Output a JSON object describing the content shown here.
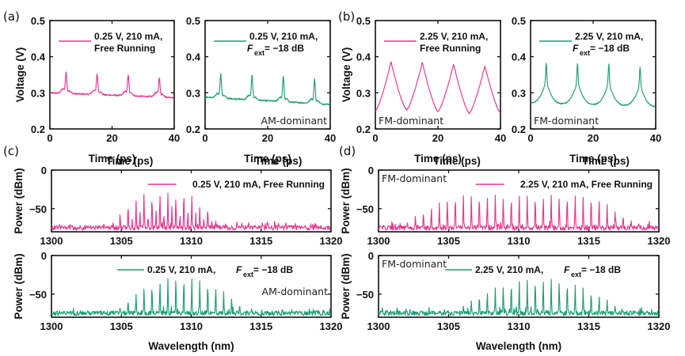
{
  "figure": {
    "colors": {
      "free_running": "#e8378f",
      "feedback": "#1f9e78",
      "axis": "#111111"
    },
    "panel_labels": [
      "(a)",
      "(b)",
      "(c)",
      "(d)"
    ]
  },
  "chart_data": [
    {
      "id": "a-free",
      "panel": "(a)",
      "type": "line",
      "xlabel": "Time (ps)",
      "ylabel": "Voltage (V)",
      "xlim": [
        0,
        40
      ],
      "ylim": [
        0.2,
        0.5
      ],
      "xticks": [
        0,
        20,
        40
      ],
      "yticks": [
        0.2,
        0.3,
        0.4,
        0.5
      ],
      "legend": {
        "line1": "0.25 V, 210 mA,",
        "line2": "Free Running",
        "position": "top-right"
      },
      "annotation": "",
      "color_key": "free_running",
      "waveform": {
        "kind": "sharp-peaks",
        "baseline_start": 0.3,
        "baseline_end": 0.287,
        "peak_times": [
          5.2,
          15.2,
          25.2,
          35.2
        ],
        "peak_values": [
          0.365,
          0.36,
          0.357,
          0.35
        ]
      }
    },
    {
      "id": "a-fb",
      "panel": "(a)",
      "type": "line",
      "xlabel": "Time (ps)",
      "ylabel": "",
      "xlim": [
        0,
        40
      ],
      "ylim": [
        0.2,
        0.5
      ],
      "xticks": [
        0,
        20,
        40
      ],
      "yticks": [
        0.2,
        0.3,
        0.4,
        0.5
      ],
      "legend": {
        "line1": "0.25 V, 210 mA,",
        "line2_prefix": "F",
        "line2_sub": "ext",
        "line2_suffix": " = −18 dB",
        "position": "top-right"
      },
      "annotation": "AM-dominant",
      "color_key": "feedback",
      "waveform": {
        "kind": "sharp-peaks",
        "baseline_start": 0.288,
        "baseline_end": 0.268,
        "peak_times": [
          5.0,
          15.0,
          25.0,
          35.0
        ],
        "peak_values": [
          0.362,
          0.357,
          0.357,
          0.348
        ]
      }
    },
    {
      "id": "b-free",
      "panel": "(b)",
      "type": "line",
      "xlabel": "Time (ps)",
      "ylabel": "Voltage (V)",
      "xlim": [
        0,
        40
      ],
      "ylim": [
        0.2,
        0.5
      ],
      "xticks": [
        0,
        20,
        40
      ],
      "yticks": [
        0.2,
        0.3,
        0.4,
        0.5
      ],
      "legend": {
        "line1": "2.25 V, 210 mA,",
        "line2": "Free Running",
        "position": "top-right"
      },
      "annotation": "FM-dominant",
      "color_key": "free_running",
      "waveform": {
        "kind": "triangular",
        "minima": [
          [
            0,
            0.25
          ],
          [
            10,
            0.252
          ],
          [
            20,
            0.248
          ],
          [
            30,
            0.243
          ],
          [
            40,
            0.244
          ]
        ],
        "peak_times": [
          5.0,
          15.0,
          25.0,
          35.0
        ],
        "peak_values": [
          0.386,
          0.385,
          0.38,
          0.375
        ]
      }
    },
    {
      "id": "b-fb",
      "panel": "(b)",
      "type": "line",
      "xlabel": "Time (ps)",
      "ylabel": "",
      "xlim": [
        0,
        40
      ],
      "ylim": [
        0.2,
        0.5
      ],
      "xticks": [
        0,
        20,
        40
      ],
      "yticks": [
        0.2,
        0.3,
        0.4,
        0.5
      ],
      "legend": {
        "line1": "2.25 V, 210 mA,",
        "line2_prefix": "F",
        "line2_sub": "ext",
        "line2_suffix": " = −18 dB",
        "position": "top-right"
      },
      "annotation": "FM-dominant",
      "color_key": "feedback",
      "waveform": {
        "kind": "cusp",
        "minima": [
          [
            0,
            0.272
          ],
          [
            10,
            0.27
          ],
          [
            20,
            0.268
          ],
          [
            30,
            0.266
          ],
          [
            40,
            0.262
          ]
        ],
        "peak_times": [
          5.0,
          15.0,
          25.0,
          35.0
        ],
        "peak_values": [
          0.383,
          0.382,
          0.38,
          0.372
        ]
      }
    },
    {
      "id": "c-free",
      "panel": "(c)",
      "type": "line",
      "xlabel": "",
      "top_xlabel": "Time (ps)",
      "ylabel": "Power (dBm)",
      "xlim": [
        1300,
        1320
      ],
      "ylim": [
        -80,
        0
      ],
      "xticks": [
        1300,
        1305,
        1310,
        1315,
        1320
      ],
      "yticks": [
        0,
        -50
      ],
      "legend": {
        "text": "0.25 V, 210 mA, Free Running",
        "position": "top-right"
      },
      "annotation": "",
      "color_key": "free_running",
      "spectrum": {
        "comb_spacing_nm": 0.57,
        "noise_floor_dbm": -76,
        "envelope_center_nm": 1308.3,
        "envelope_peak_dbm": -28,
        "envelope_width_nm": 3.6,
        "irregular": true,
        "span_nm": [
          1300,
          1316.5
        ]
      }
    },
    {
      "id": "c-fb",
      "panel": "(c)",
      "type": "line",
      "xlabel": "Wavelength (nm)",
      "ylabel": "Power (dBm)",
      "xlim": [
        1300,
        1320
      ],
      "ylim": [
        -80,
        0
      ],
      "xticks": [
        1300,
        1305,
        1310,
        1315,
        1320
      ],
      "yticks": [
        0,
        -50
      ],
      "legend": {
        "text_prefix": "0.25 V, 210 mA, ",
        "text_F": "F",
        "text_sub": "ext",
        "text_suffix": " = −18 dB",
        "position": "top-right"
      },
      "annotation": "AM-dominant",
      "color_key": "feedback",
      "spectrum": {
        "comb_spacing_nm": 0.57,
        "noise_floor_dbm": -76,
        "envelope_center_nm": 1309.3,
        "envelope_peak_dbm": -28,
        "envelope_width_nm": 4.2,
        "irregular": false,
        "span_nm": [
          1300.6,
          1315.1
        ]
      }
    },
    {
      "id": "d-free",
      "panel": "(d)",
      "type": "line",
      "xlabel": "",
      "top_xlabel": "Time (ps)",
      "ylabel": "Power (dBm)",
      "xlim": [
        1300,
        1320
      ],
      "ylim": [
        -80,
        0
      ],
      "xticks": [
        1300,
        1305,
        1310,
        1315,
        1320
      ],
      "yticks": [
        0,
        -50
      ],
      "legend": {
        "text": "2.25 V, 210 mA, Free Running",
        "position": "top-right"
      },
      "annotation": "FM-dominant",
      "color_key": "free_running",
      "spectrum": {
        "comb_spacing_nm": 0.57,
        "noise_floor_dbm": -76,
        "flat_top_dbm": -33,
        "flat_start_nm": 1305.5,
        "flat_end_nm": 1315.5,
        "rise_start_nm": 1302.0,
        "fall_end_nm": 1318.6,
        "irregular": false
      }
    },
    {
      "id": "d-fb",
      "panel": "(d)",
      "type": "line",
      "xlabel": "Wavelength (nm)",
      "ylabel": "Power (dBm)",
      "xlim": [
        1300,
        1320
      ],
      "ylim": [
        -80,
        0
      ],
      "xticks": [
        1300,
        1305,
        1310,
        1315,
        1320
      ],
      "yticks": [
        0,
        -50
      ],
      "legend": {
        "text_prefix": "2.25 V, 210 mA, ",
        "text_F": "F",
        "text_sub": "ext",
        "text_suffix": " = −18 dB",
        "position": "top-right"
      },
      "annotation": "FM-dominant",
      "color_key": "feedback",
      "spectrum": {
        "comb_spacing_nm": 0.57,
        "noise_floor_dbm": -76,
        "envelope_center_nm": 1311.5,
        "envelope_peak_dbm": -30,
        "envelope_width_nm": 5.5,
        "rise_start_nm": 1303.0,
        "fall_end_nm": 1317.7,
        "irregular": false
      }
    }
  ]
}
